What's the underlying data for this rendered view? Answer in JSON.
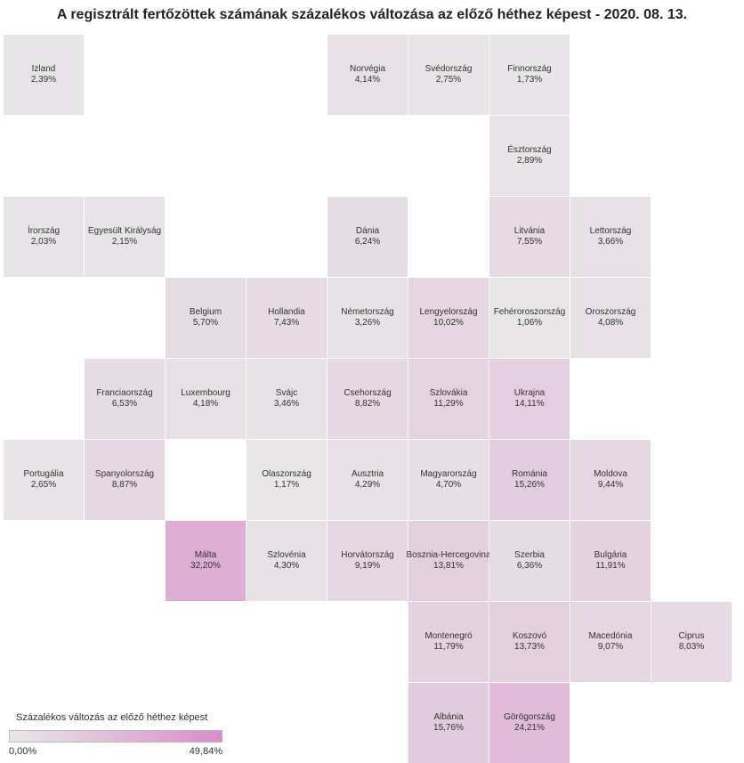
{
  "chart_data": {
    "type": "heatmap",
    "title": "A regisztrált fertőzöttek számának százalékos változása az előző héthez képest - 2020. 08. 13.",
    "legend": {
      "title": "Százalékos változás az előző héthez képest",
      "min_label": "0,00%",
      "max_label": "49,84%",
      "min": 0,
      "max": 49.84,
      "color_low": "#e8e8e8",
      "color_high": "#d98cc9"
    },
    "tiles": [
      {
        "name": "Izland",
        "value": 2.39,
        "label": "2,39%",
        "col": 0,
        "row": 0
      },
      {
        "name": "Norvégia",
        "value": 4.14,
        "label": "4,14%",
        "col": 4,
        "row": 0
      },
      {
        "name": "Svédország",
        "value": 2.75,
        "label": "2,75%",
        "col": 5,
        "row": 0
      },
      {
        "name": "Finnország",
        "value": 1.73,
        "label": "1,73%",
        "col": 6,
        "row": 0
      },
      {
        "name": "Észtország",
        "value": 2.89,
        "label": "2,89%",
        "col": 6,
        "row": 1
      },
      {
        "name": "Írország",
        "value": 2.03,
        "label": "2,03%",
        "col": 0,
        "row": 2
      },
      {
        "name": "Egyesült Királyság",
        "value": 2.15,
        "label": "2,15%",
        "col": 1,
        "row": 2
      },
      {
        "name": "Dánia",
        "value": 6.24,
        "label": "6,24%",
        "col": 4,
        "row": 2
      },
      {
        "name": "Litvánia",
        "value": 7.55,
        "label": "7,55%",
        "col": 6,
        "row": 2
      },
      {
        "name": "Lettország",
        "value": 3.66,
        "label": "3,66%",
        "col": 7,
        "row": 2
      },
      {
        "name": "Belgium",
        "value": 5.7,
        "label": "5,70%",
        "col": 2,
        "row": 3
      },
      {
        "name": "Hollandia",
        "value": 7.43,
        "label": "7,43%",
        "col": 3,
        "row": 3
      },
      {
        "name": "Németország",
        "value": 3.26,
        "label": "3,26%",
        "col": 4,
        "row": 3
      },
      {
        "name": "Lengyelország",
        "value": 10.02,
        "label": "10,02%",
        "col": 5,
        "row": 3
      },
      {
        "name": "Fehéroroszország",
        "value": 1.06,
        "label": "1,06%",
        "col": 6,
        "row": 3
      },
      {
        "name": "Oroszország",
        "value": 4.08,
        "label": "4,08%",
        "col": 7,
        "row": 3
      },
      {
        "name": "Franciaország",
        "value": 6.53,
        "label": "6,53%",
        "col": 1,
        "row": 4
      },
      {
        "name": "Luxembourg",
        "value": 4.18,
        "label": "4,18%",
        "col": 2,
        "row": 4
      },
      {
        "name": "Svájc",
        "value": 3.46,
        "label": "3,46%",
        "col": 3,
        "row": 4
      },
      {
        "name": "Csehország",
        "value": 8.82,
        "label": "8,82%",
        "col": 4,
        "row": 4
      },
      {
        "name": "Szlovákia",
        "value": 11.29,
        "label": "11,29%",
        "col": 5,
        "row": 4
      },
      {
        "name": "Ukrajna",
        "value": 14.11,
        "label": "14,11%",
        "col": 6,
        "row": 4
      },
      {
        "name": "Portugália",
        "value": 2.65,
        "label": "2,65%",
        "col": 0,
        "row": 5
      },
      {
        "name": "Spanyolország",
        "value": 8.87,
        "label": "8,87%",
        "col": 1,
        "row": 5
      },
      {
        "name": "Olaszország",
        "value": 1.17,
        "label": "1,17%",
        "col": 3,
        "row": 5
      },
      {
        "name": "Ausztria",
        "value": 4.29,
        "label": "4,29%",
        "col": 4,
        "row": 5
      },
      {
        "name": "Magyarország",
        "value": 4.7,
        "label": "4,70%",
        "col": 5,
        "row": 5
      },
      {
        "name": "Románia",
        "value": 15.26,
        "label": "15,26%",
        "col": 6,
        "row": 5
      },
      {
        "name": "Moldova",
        "value": 9.44,
        "label": "9,44%",
        "col": 7,
        "row": 5
      },
      {
        "name": "Málta",
        "value": 32.2,
        "label": "32,20%",
        "col": 2,
        "row": 6
      },
      {
        "name": "Szlovénia",
        "value": 4.3,
        "label": "4,30%",
        "col": 3,
        "row": 6
      },
      {
        "name": "Horvátország",
        "value": 9.19,
        "label": "9,19%",
        "col": 4,
        "row": 6
      },
      {
        "name": "Bosznia-Hercegovina",
        "value": 13.81,
        "label": "13,81%",
        "col": 5,
        "row": 6
      },
      {
        "name": "Szerbia",
        "value": 6.36,
        "label": "6,36%",
        "col": 6,
        "row": 6
      },
      {
        "name": "Bulgária",
        "value": 11.91,
        "label": "11,91%",
        "col": 7,
        "row": 6
      },
      {
        "name": "Montenegró",
        "value": 11.79,
        "label": "11,79%",
        "col": 5,
        "row": 7
      },
      {
        "name": "Koszovó",
        "value": 13.73,
        "label": "13,73%",
        "col": 6,
        "row": 7
      },
      {
        "name": "Macedónia",
        "value": 9.07,
        "label": "9,07%",
        "col": 7,
        "row": 7
      },
      {
        "name": "Ciprus",
        "value": 8.03,
        "label": "8,03%",
        "col": 8,
        "row": 7
      },
      {
        "name": "Albánia",
        "value": 15.76,
        "label": "15,76%",
        "col": 5,
        "row": 8
      },
      {
        "name": "Görögország",
        "value": 24.21,
        "label": "24,21%",
        "col": 6,
        "row": 8
      }
    ]
  }
}
